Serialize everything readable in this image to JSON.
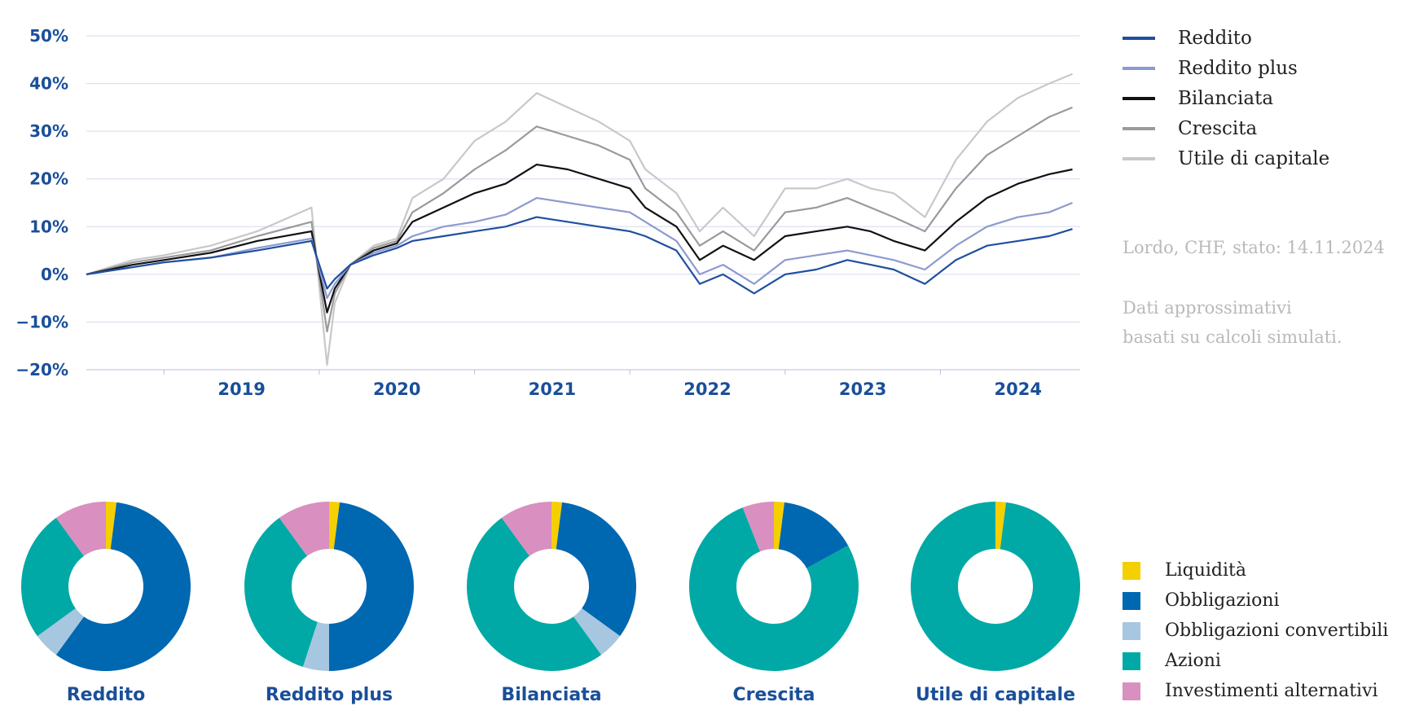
{
  "chart_data": [
    {
      "type": "line",
      "x_ticks": [
        "2019",
        "2020",
        "2021",
        "2022",
        "2023",
        "2024"
      ],
      "y_ticks": [
        "50%",
        "40%",
        "30%",
        "20%",
        "10%",
        "0%",
        "−10%",
        "−20%"
      ],
      "ylim": [
        -20,
        50
      ],
      "xlim": [
        2018.5,
        2024.9
      ],
      "grid": true,
      "legend_position": "right",
      "series": [
        {
          "name": "Reddito",
          "color": "#1f4fa0",
          "x": [
            2018.5,
            2018.8,
            2019.0,
            2019.3,
            2019.6,
            2019.95,
            2020.05,
            2020.1,
            2020.2,
            2020.35,
            2020.5,
            2020.6,
            2020.8,
            2021.0,
            2021.2,
            2021.4,
            2021.6,
            2021.8,
            2022.0,
            2022.1,
            2022.3,
            2022.45,
            2022.6,
            2022.8,
            2023.0,
            2023.2,
            2023.4,
            2023.55,
            2023.7,
            2023.9,
            2024.1,
            2024.3,
            2024.5,
            2024.7,
            2024.85
          ],
          "values": [
            0,
            1.5,
            2.5,
            3.5,
            5,
            7,
            -3,
            -1,
            2,
            4,
            5.5,
            7,
            8,
            9,
            10,
            12,
            11,
            10,
            9,
            8,
            5,
            -2,
            0,
            -4,
            0,
            1,
            3,
            2,
            1,
            -2,
            3,
            6,
            7,
            8,
            9.5
          ]
        },
        {
          "name": "Reddito plus",
          "color": "#8d9ad0",
          "x": [
            2018.5,
            2018.8,
            2019.0,
            2019.3,
            2019.6,
            2019.95,
            2020.05,
            2020.1,
            2020.2,
            2020.35,
            2020.5,
            2020.6,
            2020.8,
            2021.0,
            2021.2,
            2021.4,
            2021.6,
            2021.8,
            2022.0,
            2022.1,
            2022.3,
            2022.45,
            2022.6,
            2022.8,
            2023.0,
            2023.2,
            2023.4,
            2023.55,
            2023.7,
            2023.9,
            2024.1,
            2024.3,
            2024.5,
            2024.7,
            2024.85
          ],
          "values": [
            0,
            1.5,
            2.5,
            3.5,
            5.5,
            7.5,
            -5,
            -2,
            2,
            4.5,
            6,
            8,
            10,
            11,
            12.5,
            16,
            15,
            14,
            13,
            11,
            7,
            0,
            2,
            -2,
            3,
            4,
            5,
            4,
            3,
            1,
            6,
            10,
            12,
            13,
            15
          ]
        },
        {
          "name": "Bilanciata",
          "color": "#111111",
          "x": [
            2018.5,
            2018.8,
            2019.0,
            2019.3,
            2019.6,
            2019.95,
            2020.05,
            2020.1,
            2020.2,
            2020.35,
            2020.5,
            2020.6,
            2020.8,
            2021.0,
            2021.2,
            2021.4,
            2021.6,
            2021.8,
            2022.0,
            2022.1,
            2022.3,
            2022.45,
            2022.6,
            2022.8,
            2023.0,
            2023.2,
            2023.4,
            2023.55,
            2023.7,
            2023.9,
            2024.1,
            2024.3,
            2024.5,
            2024.7,
            2024.85
          ],
          "values": [
            0,
            2,
            3,
            4.5,
            7,
            9,
            -8,
            -3,
            2,
            5,
            6.5,
            11,
            14,
            17,
            19,
            23,
            22,
            20,
            18,
            14,
            10,
            3,
            6,
            3,
            8,
            9,
            10,
            9,
            7,
            5,
            11,
            16,
            19,
            21,
            22
          ]
        },
        {
          "name": "Crescita",
          "color": "#9a9a9a",
          "x": [
            2018.5,
            2018.8,
            2019.0,
            2019.3,
            2019.6,
            2019.95,
            2020.05,
            2020.1,
            2020.2,
            2020.35,
            2020.5,
            2020.6,
            2020.8,
            2021.0,
            2021.2,
            2021.4,
            2021.6,
            2021.8,
            2022.0,
            2022.1,
            2022.3,
            2022.45,
            2022.6,
            2022.8,
            2023.0,
            2023.2,
            2023.4,
            2023.55,
            2023.7,
            2023.9,
            2024.1,
            2024.3,
            2024.5,
            2024.7,
            2024.85
          ],
          "values": [
            0,
            2.5,
            3.5,
            5,
            8,
            11,
            -12,
            -4,
            2,
            5.5,
            7,
            13,
            17,
            22,
            26,
            31,
            29,
            27,
            24,
            18,
            13,
            6,
            9,
            5,
            13,
            14,
            16,
            14,
            12,
            9,
            18,
            25,
            29,
            33,
            35
          ]
        },
        {
          "name": "Utile di capitale",
          "color": "#c8c8c8",
          "x": [
            2018.5,
            2018.8,
            2019.0,
            2019.3,
            2019.6,
            2019.95,
            2020.05,
            2020.1,
            2020.2,
            2020.35,
            2020.5,
            2020.6,
            2020.8,
            2021.0,
            2021.2,
            2021.4,
            2021.6,
            2021.8,
            2022.0,
            2022.1,
            2022.3,
            2022.45,
            2022.6,
            2022.8,
            2023.0,
            2023.2,
            2023.4,
            2023.55,
            2023.7,
            2023.9,
            2024.1,
            2024.3,
            2024.5,
            2024.7,
            2024.85
          ],
          "values": [
            0,
            3,
            4,
            6,
            9,
            14,
            -19,
            -6,
            2,
            6,
            7.5,
            16,
            20,
            28,
            32,
            38,
            35,
            32,
            28,
            22,
            17,
            9,
            14,
            8,
            18,
            18,
            20,
            18,
            17,
            12,
            24,
            32,
            37,
            40,
            42
          ]
        }
      ]
    },
    {
      "type": "pie",
      "donut": true,
      "categories": [
        "Liquidità",
        "Obbligazioni",
        "Obbligazioni convertibili",
        "Azioni",
        "Investimenti alternativi"
      ],
      "colors": [
        "#f5cf00",
        "#0067b1",
        "#a7c6e0",
        "#00a9a5",
        "#d98fbf"
      ],
      "charts": [
        {
          "title": "Reddito",
          "values": [
            2,
            58,
            5,
            25,
            10
          ]
        },
        {
          "title": "Reddito plus",
          "values": [
            2,
            48,
            5,
            35,
            10
          ]
        },
        {
          "title": "Bilanciata",
          "values": [
            2,
            33,
            5,
            50,
            10
          ]
        },
        {
          "title": "Crescita",
          "values": [
            2,
            15,
            0,
            77,
            6
          ]
        },
        {
          "title": "Utile di capitale",
          "values": [
            2,
            0,
            0,
            98,
            0
          ]
        }
      ]
    }
  ],
  "legend": {
    "lines": [
      {
        "label": "Reddito",
        "color": "#1f4fa0"
      },
      {
        "label": "Reddito plus",
        "color": "#8d9ad0"
      },
      {
        "label": "Bilanciata",
        "color": "#111111"
      },
      {
        "label": "Crescita",
        "color": "#9a9a9a"
      },
      {
        "label": "Utile di capitale",
        "color": "#c8c8c8"
      }
    ],
    "allocation": [
      {
        "label": "Liquidità",
        "color": "#f5cf00"
      },
      {
        "label": "Obbligazioni",
        "color": "#0067b1"
      },
      {
        "label": "Obbligazioni convertibili",
        "color": "#a7c6e0"
      },
      {
        "label": "Azioni",
        "color": "#00a9a5"
      },
      {
        "label": "Investimenti alternativi",
        "color": "#d98fbf"
      }
    ]
  },
  "notes": {
    "status": "Lordo, CHF, stato: 14.11.2024",
    "disclaimer_line1": "Dati approssimativi",
    "disclaimer_line2": "basati su calcoli simulati."
  }
}
